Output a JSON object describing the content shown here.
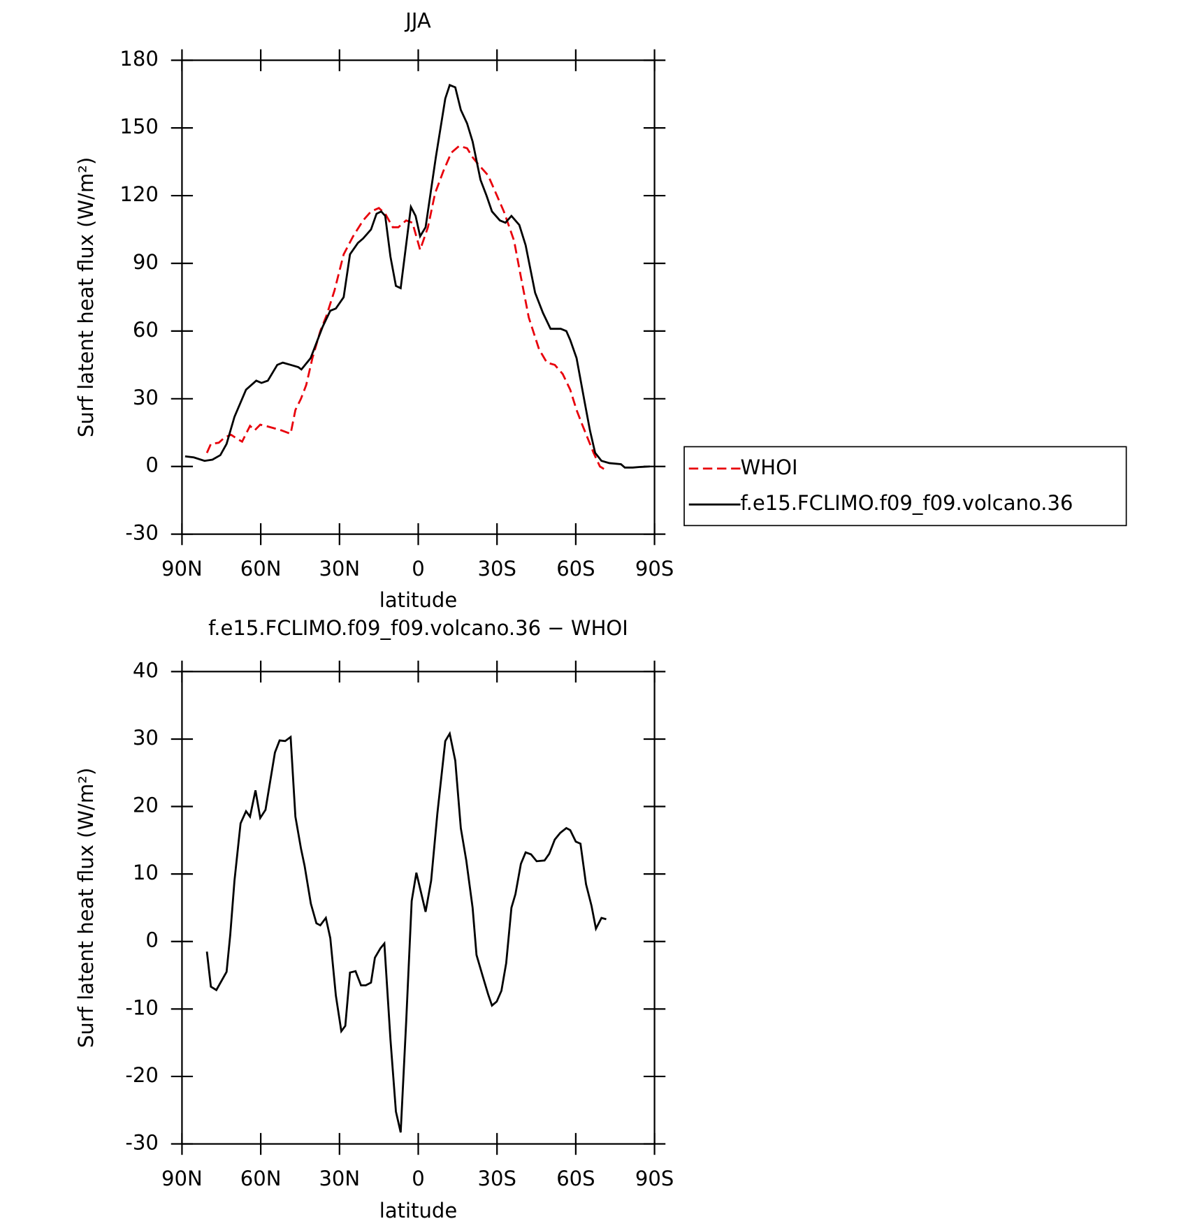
{
  "chart_data": [
    {
      "type": "line",
      "title": "JJA",
      "xlabel": "latitude",
      "ylabel": "Surf latent heat flux (W/m²)",
      "xlim": [
        90,
        -90
      ],
      "xticks": [
        {
          "value": 90,
          "label": "90N"
        },
        {
          "value": 60,
          "label": "60N"
        },
        {
          "value": 30,
          "label": "30N"
        },
        0,
        {
          "value": -30,
          "label": "30S"
        },
        {
          "value": -60,
          "label": "60S"
        },
        {
          "value": -90,
          "label": "90S"
        }
      ],
      "ylim": [
        -30,
        180
      ],
      "yticks": [
        -30,
        0,
        30,
        60,
        90,
        120,
        150,
        180
      ],
      "legend_position": "right",
      "series": [
        {
          "name": "WHOI",
          "color": "#e8000b",
          "dash": true,
          "x": [
            80.5,
            79,
            76,
            73.6,
            71.3,
            68.6,
            67.1,
            64.1,
            62.3,
            60.2,
            58.2,
            55.2,
            52.2,
            48.6,
            46.8,
            44.7,
            42.7,
            40.3,
            37.3,
            34.9,
            31.9,
            28.4,
            24.8,
            21,
            18,
            15,
            12.6,
            9.7,
            7.6,
            4.6,
            2.2,
            -0.7,
            -3.7,
            -6.4,
            -9.6,
            -12.6,
            -15.6,
            -18.6,
            -20.7,
            -22.8,
            -26.6,
            -29.6,
            -32.6,
            -36.5,
            -39.1,
            -42.1,
            -46,
            -49,
            -52,
            -55,
            -57.9,
            -60.3,
            -62.3,
            -66.8,
            -69.2,
            -71.3
          ],
          "values": [
            6,
            10,
            10.5,
            13,
            14,
            12,
            11,
            18,
            16,
            18.5,
            18,
            17,
            16,
            14.5,
            25,
            30,
            36,
            48,
            60,
            67,
            78,
            94,
            102,
            109,
            113,
            114.5,
            112,
            106,
            106,
            109,
            108,
            96,
            106,
            121,
            131,
            139,
            142,
            141,
            137,
            134,
            129,
            121,
            113,
            100,
            84,
            66,
            52,
            46,
            45,
            41,
            34,
            25,
            19,
            6,
            0,
            -1.5
          ]
        },
        {
          "name": "f.e15.FCLIMO.f09_f09.volcano.36",
          "color": "#000000",
          "dash": false,
          "x": [
            88.8,
            85.5,
            81.4,
            78.4,
            75.4,
            73,
            70,
            65.6,
            61.7,
            59.7,
            57.3,
            53.7,
            51.6,
            48.6,
            45.7,
            44.5,
            41,
            36.4,
            33.5,
            31.4,
            28.4,
            26,
            23,
            21,
            18,
            15.9,
            14.1,
            12.6,
            10.6,
            8.5,
            6.7,
            2.8,
            1,
            -0.7,
            -2.8,
            -6.7,
            -10.3,
            -12,
            -14.1,
            -16.2,
            -18.6,
            -20.7,
            -23.7,
            -26,
            -28.1,
            -31.1,
            -33.2,
            -35.5,
            -38.5,
            -40.9,
            -44.5,
            -47.5,
            -50.4,
            -54.3,
            -56.4,
            -57.9,
            -60.3,
            -63.3,
            -65.4,
            -67.4,
            -69.8,
            -72.8,
            -77.2,
            -78.7,
            -81.7,
            -84.7,
            -88.2
          ],
          "values": [
            4.5,
            4,
            2.5,
            3,
            5,
            10,
            22,
            34,
            38,
            37,
            38,
            45,
            46,
            45,
            44,
            43,
            48,
            62,
            69,
            70,
            75,
            94,
            99,
            101,
            105,
            112,
            113,
            111,
            93,
            80,
            79,
            115,
            111,
            102,
            106,
            137,
            163,
            169,
            168,
            158,
            152,
            144,
            127,
            120,
            113,
            109,
            108,
            111,
            107,
            98,
            77,
            68,
            61,
            61,
            60,
            56,
            48,
            29,
            16,
            6,
            2.5,
            1.5,
            1,
            -0.5,
            -0.5,
            -0.2,
            0
          ]
        }
      ]
    },
    {
      "type": "line",
      "title": "f.e15.FCLIMO.f09_f09.volcano.36 − WHOI",
      "xlabel": "latitude",
      "ylabel": "Surf latent heat flux (W/m²)",
      "xlim": [
        90,
        -90
      ],
      "xticks": [
        {
          "value": 90,
          "label": "90N"
        },
        {
          "value": 60,
          "label": "60N"
        },
        {
          "value": 30,
          "label": "30N"
        },
        0,
        {
          "value": -30,
          "label": "30S"
        },
        {
          "value": -60,
          "label": "60S"
        },
        {
          "value": -90,
          "label": "90S"
        }
      ],
      "ylim": [
        -30,
        40
      ],
      "yticks": [
        -30,
        -20,
        -10,
        0,
        10,
        20,
        30,
        40
      ],
      "series": [
        {
          "color": "#000000",
          "dash": false,
          "x": [
            80.5,
            79,
            76.9,
            73,
            71.6,
            70,
            67.7,
            65.6,
            64.1,
            62,
            60.2,
            58.2,
            54.6,
            52.8,
            50.7,
            48.6,
            46.8,
            44.7,
            43.3,
            40.9,
            38.8,
            37.3,
            35.2,
            33.5,
            31.4,
            29.3,
            27.8,
            26,
            23.9,
            21.8,
            20,
            18,
            16.5,
            14.4,
            12.9,
            10.6,
            8.5,
            6.7,
            4.6,
            2.5,
            0.7,
            -2.8,
            -4.9,
            -7.3,
            -10.3,
            -12,
            -14.1,
            -16.2,
            -18.3,
            -20.7,
            -22.2,
            -24.6,
            -26.6,
            -28.1,
            -29.9,
            -31.7,
            -33.5,
            -35.5,
            -37,
            -39.1,
            -40.9,
            -43,
            -45.1,
            -48.1,
            -49.9,
            -52,
            -54.1,
            -56.4,
            -57.9,
            -60,
            -61.8,
            -63.9,
            -66,
            -67.7,
            -69.8,
            -71.6
          ],
          "values": [
            -1.5,
            -6.7,
            -7.2,
            -4.5,
            1,
            9,
            17.5,
            19.3,
            18.5,
            22.4,
            18.3,
            19.5,
            28,
            29.8,
            29.7,
            30.3,
            18.5,
            13.8,
            11.2,
            5.6,
            2.7,
            2.4,
            3.5,
            0.5,
            -8,
            -13.3,
            -12.5,
            -4.6,
            -4.4,
            -6.5,
            -6.5,
            -6.1,
            -2.4,
            -1,
            -0.3,
            -14.5,
            -25.2,
            -28.3,
            -12,
            6,
            10.2,
            4.4,
            9,
            19,
            29.7,
            30.8,
            26.8,
            16.8,
            12,
            5,
            -2,
            -5.2,
            -7.8,
            -9.5,
            -8.9,
            -7.3,
            -3.2,
            5,
            7,
            11.5,
            13.2,
            12.9,
            11.9,
            12,
            13,
            15.1,
            16.1,
            16.8,
            16.5,
            14.8,
            14.5,
            8.5,
            5.3,
            1.9,
            3.5,
            3.3
          ]
        }
      ]
    }
  ]
}
